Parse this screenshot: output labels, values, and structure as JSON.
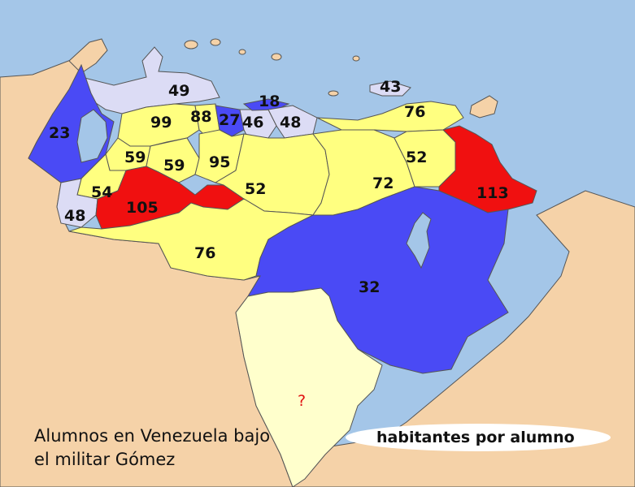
{
  "colors": {
    "sea": "#a4c6e8",
    "land_outside": "#f5d2a8",
    "islands": "#f5d2a8",
    "border": "#555555",
    "very_low": "#4a4af5",
    "low": "#dcdcf5",
    "medium": "#ffff80",
    "high": "#f01010",
    "no_data": "#ffffcc",
    "lake": "#a4c6e8"
  },
  "map": {
    "values": {
      "zulia": "23",
      "falcon": "49",
      "lara": "99",
      "yaracuy": "88",
      "carabobo": "27",
      "aragua": "46",
      "distrito_federal": "18",
      "miranda": "48",
      "sucre": "76",
      "nueva_esparta": "43",
      "trujillo": "59",
      "portuguesa": "59",
      "cojedes": "95",
      "guarico": "52",
      "anzoategui": "72",
      "monagas": "52",
      "delta_amacuro": "113",
      "merida": "54",
      "barinas": "105",
      "tachira": "48",
      "apure": "76",
      "bolivar": "32",
      "amazonas": "?"
    },
    "caption_line1": "Alumnos en Venezuela bajo",
    "caption_line2": "el militar Gómez",
    "legend_label": "habitantes por alumno"
  }
}
